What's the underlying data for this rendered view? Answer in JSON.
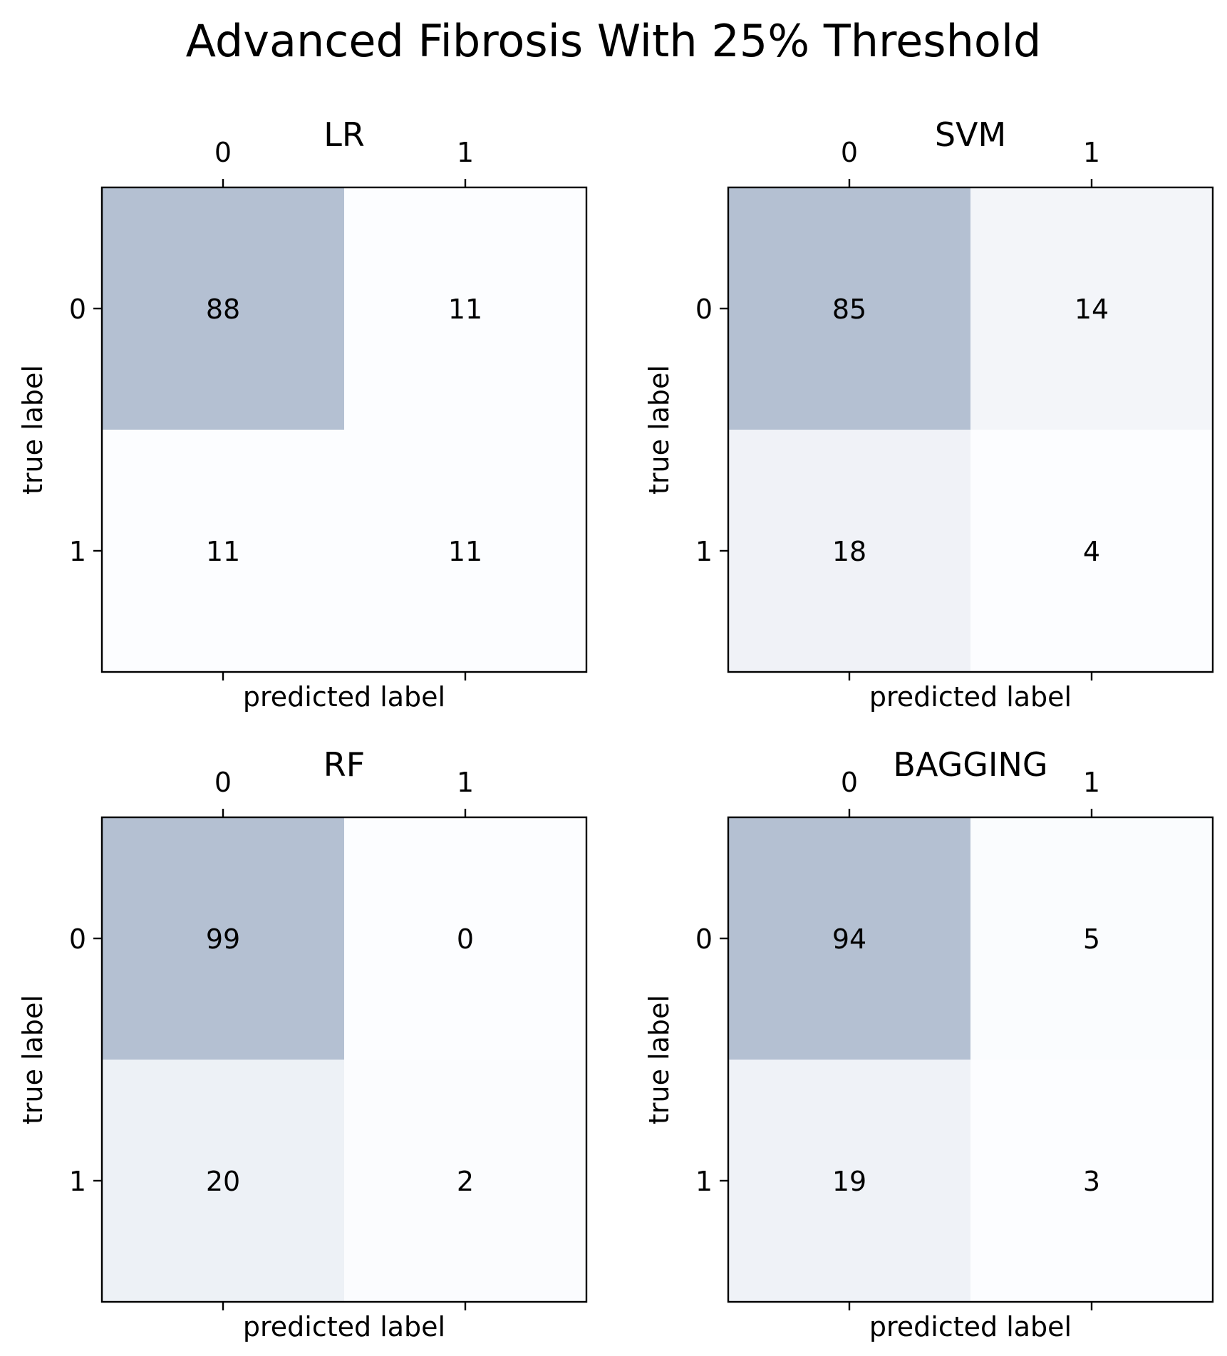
{
  "figure": {
    "title": "Advanced Fibrosis With 25% Threshold"
  },
  "colors": {
    "cell_max": "#b4c0d2",
    "cell_min": "#fcfdff",
    "text": "#000000",
    "frame": "#000000"
  },
  "chart_data": [
    {
      "type": "heatmap",
      "title": "LR",
      "xlabel": "predicted label",
      "ylabel": "true label",
      "x_ticks": [
        "0",
        "1"
      ],
      "y_ticks": [
        "0",
        "1"
      ],
      "matrix": [
        [
          88,
          11
        ],
        [
          11,
          11
        ]
      ]
    },
    {
      "type": "heatmap",
      "title": "SVM",
      "xlabel": "predicted label",
      "ylabel": "true label",
      "x_ticks": [
        "0",
        "1"
      ],
      "y_ticks": [
        "0",
        "1"
      ],
      "matrix": [
        [
          85,
          14
        ],
        [
          18,
          4
        ]
      ]
    },
    {
      "type": "heatmap",
      "title": "RF",
      "xlabel": "predicted label",
      "ylabel": "true label",
      "x_ticks": [
        "0",
        "1"
      ],
      "y_ticks": [
        "0",
        "1"
      ],
      "matrix": [
        [
          99,
          0
        ],
        [
          20,
          2
        ]
      ]
    },
    {
      "type": "heatmap",
      "title": "BAGGING",
      "xlabel": "predicted label",
      "ylabel": "true label",
      "x_ticks": [
        "0",
        "1"
      ],
      "y_ticks": [
        "0",
        "1"
      ],
      "matrix": [
        [
          94,
          5
        ],
        [
          19,
          3
        ]
      ]
    }
  ]
}
